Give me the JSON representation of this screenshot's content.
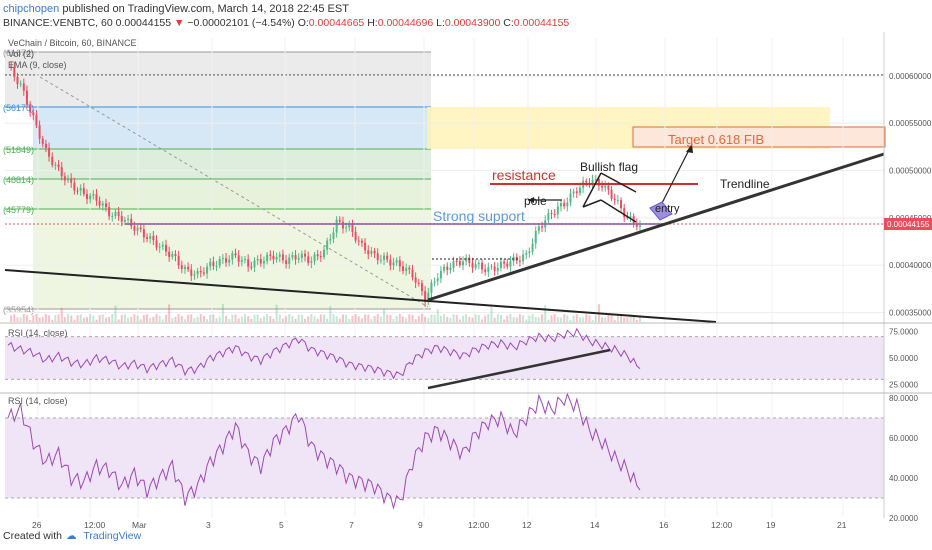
{
  "header": {
    "author": "chipchopen",
    "published": "published on TradingView.com, March 14, 2018 22:45 EST",
    "symbol": "BINANCE:VENBTC, 60",
    "last": "0.00044155",
    "change": "−0.00002101 (−4.54%)",
    "ohlc": {
      "O": "0.00044665",
      "H": "0.00044696",
      "L": "0.00043900",
      "C": "0.00044155"
    }
  },
  "main_pane": {
    "legend": [
      "VeChain / Bitcoin, 60, BINANCE",
      "Vol (2)",
      "EMA (9, close)"
    ],
    "price_ticks": [
      "0.00060000",
      "0.00055000",
      "0.00050000",
      "0.00045000",
      "0.00040000",
      "0.00035000"
    ],
    "current_price": "0.00044155",
    "fib_labels": [
      "61674",
      "56170",
      "51849",
      "48814",
      "45779",
      "35954"
    ]
  },
  "annotations": {
    "target": "Target 0.618 FIB",
    "resistance": "resistance",
    "bullish_flag": "Bullish flag",
    "pole": "pole",
    "entry": "entry",
    "trendline": "Trendline",
    "strong_support": "Strong support"
  },
  "rsi1": {
    "legend": "RSI (14, close)",
    "ticks": [
      "75.0000",
      "50.0000",
      "25.0000"
    ]
  },
  "rsi2": {
    "legend": "RSI (14, close)",
    "ticks": [
      "80.0000",
      "60.0000",
      "40.0000",
      "20.0000"
    ]
  },
  "time_axis": [
    "26",
    "12:00",
    "Mar",
    "3",
    "5",
    "7",
    "9",
    "12:00",
    "12",
    "14",
    "16",
    "12:00",
    "19",
    "21"
  ],
  "footer": {
    "created": "Created with",
    "brand": "TradingView"
  },
  "colors": {
    "up": "#53b987",
    "down": "#eb4d5c",
    "rsi": "#9c49b6",
    "fib_gray": "#e6e6e6",
    "fib_blue": "#d6e8f5",
    "fib_green": "#e6f2db",
    "target_box": "#fff2b3",
    "target_text": "#e06a3a"
  },
  "chart_data": [
    {
      "type": "candlestick",
      "title": "VeChain / Bitcoin, 60, BINANCE",
      "ylim": [
        0.00034,
        0.00064
      ],
      "x_ticks": [
        "26",
        "12:00",
        "Mar",
        "3",
        "5",
        "7",
        "9",
        "12:00",
        "12",
        "14",
        "16",
        "12:00",
        "19",
        "21"
      ],
      "close_series": [
        0.00061,
        0.00059,
        0.000555,
        0.00052,
        0.0005,
        0.000485,
        0.000475,
        0.00047,
        0.000455,
        0.00045,
        0.00044,
        0.00043,
        0.00042,
        0.00041,
        0.000395,
        0.00039,
        0.0004,
        0.000405,
        0.00041,
        0.0004,
        0.000405,
        0.00041,
        0.000405,
        0.00041,
        0.000405,
        0.000415,
        0.000445,
        0.00044,
        0.00042,
        0.00041,
        0.000405,
        0.0004,
        0.00039,
        0.000365,
        0.00039,
        0.0004,
        0.000405,
        0.0004,
        0.000395,
        0.0004,
        0.000405,
        0.00041,
        0.00044,
        0.000455,
        0.000465,
        0.00048,
        0.00049,
        0.000485,
        0.00047,
        0.00045,
        0.000442
      ],
      "annotations": [
        "Target 0.618 FIB",
        "resistance",
        "Bullish flag",
        "pole",
        "entry",
        "Trendline",
        "Strong support"
      ]
    },
    {
      "type": "line",
      "title": "RSI (14, close)",
      "ylim": [
        20,
        80
      ],
      "values": [
        62,
        58,
        55,
        48,
        52,
        46,
        44,
        50,
        48,
        42,
        45,
        40,
        44,
        48,
        38,
        40,
        50,
        55,
        60,
        52,
        48,
        56,
        62,
        68,
        58,
        54,
        50,
        44,
        42,
        40,
        36,
        34,
        48,
        56,
        60,
        56,
        52,
        58,
        62,
        64,
        60,
        66,
        70,
        68,
        72,
        74,
        66,
        62,
        58,
        52,
        40
      ]
    },
    {
      "type": "line",
      "title": "RSI (14, close)",
      "ylim": [
        20,
        82
      ],
      "values": [
        70,
        74,
        58,
        48,
        52,
        40,
        38,
        46,
        44,
        36,
        42,
        34,
        40,
        46,
        30,
        36,
        48,
        56,
        66,
        52,
        46,
        58,
        64,
        72,
        56,
        50,
        46,
        40,
        38,
        36,
        30,
        28,
        48,
        60,
        64,
        58,
        52,
        62,
        68,
        70,
        62,
        70,
        78,
        74,
        80,
        76,
        64,
        58,
        50,
        44,
        34
      ]
    }
  ]
}
